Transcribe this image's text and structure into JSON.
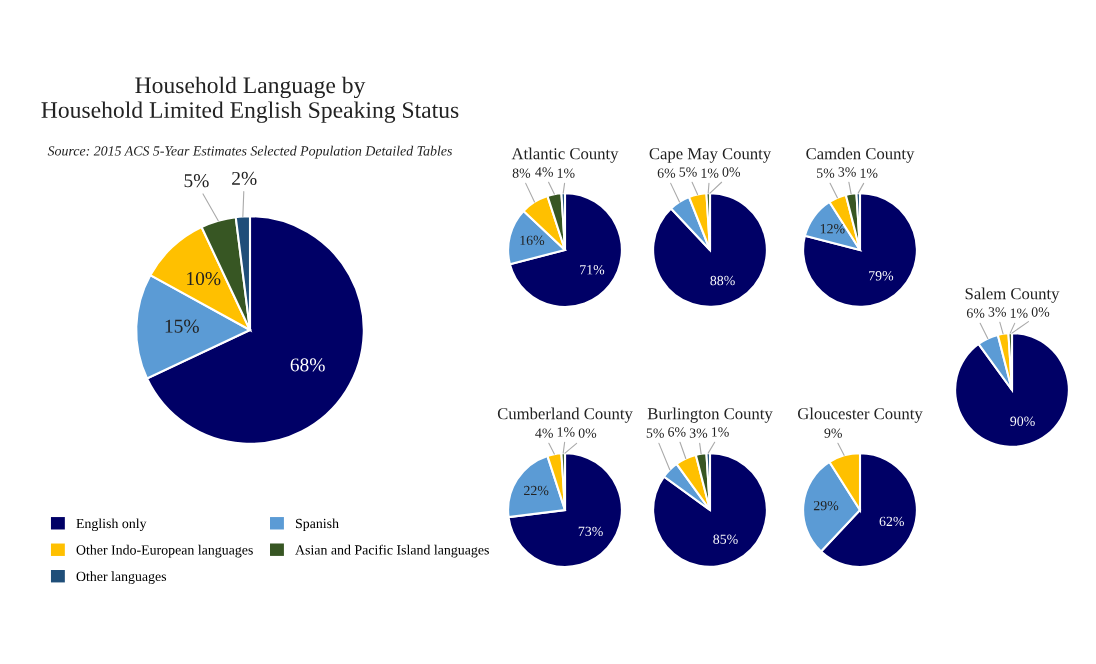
{
  "chart_data": [
    {
      "type": "pie",
      "title": "Household Language by\nHousehold Limited English Speaking Status",
      "subtitle": "Source: 2015 ACS 5-Year Estimates Selected Population Detailed Tables",
      "categories": [
        "English only",
        "Spanish",
        "Other Indo-European languages",
        "Asian and Pacific Island languages",
        "Other languages"
      ],
      "values": [
        68,
        15,
        10,
        5,
        2
      ],
      "value_labels": [
        "68%",
        "15%",
        "10%",
        "5%",
        "2%"
      ],
      "colors": [
        "#000066",
        "#5b9bd5",
        "#ffc000",
        "#375623",
        "#1f4e79"
      ],
      "legend": "bottom"
    },
    {
      "type": "pie",
      "title": "Atlantic County",
      "categories": [
        null,
        null,
        null,
        null,
        null
      ],
      "values": [
        71,
        16,
        8,
        4,
        1
      ],
      "value_labels": [
        "71%",
        "16%",
        "8%",
        "4%",
        "1%"
      ],
      "colors": [
        "#000066",
        "#5b9bd5",
        "#ffc000",
        "#375623",
        "#1f4e79"
      ]
    },
    {
      "type": "pie",
      "title": "Cape May County",
      "categories": [
        null,
        null,
        null,
        null,
        null
      ],
      "values": [
        88,
        6,
        5,
        1,
        0
      ],
      "value_labels": [
        "88%",
        "6%",
        "5%",
        "1%",
        "0%"
      ],
      "colors": [
        "#000066",
        "#5b9bd5",
        "#ffc000",
        "#375623",
        "#1f4e79"
      ]
    },
    {
      "type": "pie",
      "title": "Camden County",
      "categories": [
        null,
        null,
        null,
        null,
        null
      ],
      "values": [
        79,
        12,
        5,
        3,
        1
      ],
      "value_labels": [
        "79%",
        "12%",
        "5%",
        "3%",
        "1%"
      ],
      "colors": [
        "#000066",
        "#5b9bd5",
        "#ffc000",
        "#375623",
        "#1f4e79"
      ]
    },
    {
      "type": "pie",
      "title": "Salem County",
      "categories": [
        null,
        null,
        null,
        null,
        null
      ],
      "values": [
        90,
        6,
        3,
        1,
        0
      ],
      "value_labels": [
        "90%",
        "6%",
        "3%",
        "1%",
        "0%"
      ],
      "colors": [
        "#000066",
        "#5b9bd5",
        "#ffc000",
        "#375623",
        "#1f4e79"
      ]
    },
    {
      "type": "pie",
      "title": "Cumberland County",
      "categories": [
        null,
        null,
        null,
        null,
        null
      ],
      "values": [
        73,
        22,
        4,
        1,
        0
      ],
      "value_labels": [
        "73%",
        "22%",
        "4%",
        "1%",
        "0%"
      ],
      "colors": [
        "#000066",
        "#5b9bd5",
        "#ffc000",
        "#375623",
        "#1f4e79"
      ]
    },
    {
      "type": "pie",
      "title": "Burlington County",
      "categories": [
        null,
        null,
        null,
        null,
        null
      ],
      "values": [
        85,
        5,
        6,
        3,
        1
      ],
      "value_labels": [
        "85%",
        "5%",
        "6%",
        "3%",
        "1%"
      ],
      "colors": [
        "#000066",
        "#5b9bd5",
        "#ffc000",
        "#375623",
        "#1f4e79"
      ]
    },
    {
      "type": "pie",
      "title": "Gloucester County",
      "categories": [
        null,
        null,
        null
      ],
      "values": [
        62,
        29,
        9
      ],
      "value_labels": [
        "62%",
        "29%",
        "9%"
      ],
      "colors": [
        "#000066",
        "#5b9bd5",
        "#ffc000"
      ]
    }
  ]
}
